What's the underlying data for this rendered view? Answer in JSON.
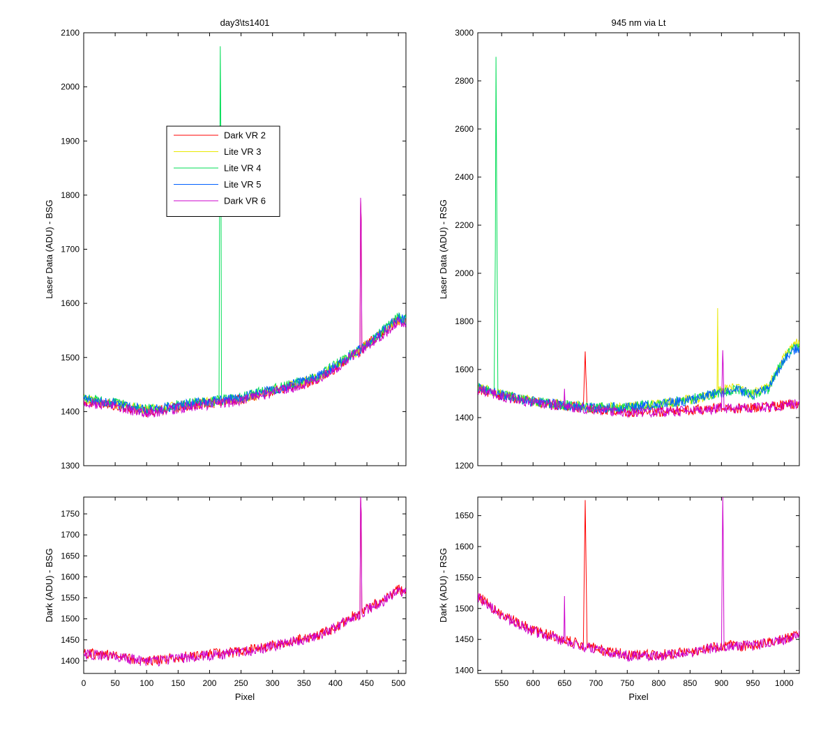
{
  "chart_data": [
    {
      "id": "top-left",
      "type": "line",
      "title": "day3\\ts1401",
      "xlabel": "",
      "ylabel": "Laser Data (ADU) - BSG",
      "xlim": [
        0,
        512
      ],
      "ylim": [
        1300,
        2100
      ],
      "xticks": [
        0,
        50,
        100,
        150,
        200,
        250,
        300,
        350,
        400,
        450,
        500
      ],
      "yticks": [
        1300,
        1400,
        1500,
        1600,
        1700,
        1800,
        1900,
        2000,
        2100
      ],
      "show_x_tick_labels": false,
      "legend": {
        "placement": "upper-left",
        "entries": [
          "Dark VR 2",
          "Lite VR 3",
          "Lite VR 4",
          "Lite VR 5",
          "Dark VR 6"
        ]
      },
      "series": [
        {
          "name": "Dark VR 2",
          "color": "#ff0000",
          "x": [
            0,
            25,
            50,
            75,
            100,
            125,
            150,
            175,
            200,
            225,
            250,
            275,
            300,
            325,
            350,
            375,
            400,
            425,
            439,
            440,
            441,
            442,
            450,
            475,
            500,
            512
          ],
          "y": [
            1420,
            1415,
            1412,
            1405,
            1400,
            1402,
            1408,
            1412,
            1415,
            1418,
            1422,
            1430,
            1437,
            1445,
            1452,
            1462,
            1480,
            1505,
            1510,
            1790,
            1750,
            1515,
            1525,
            1545,
            1570,
            1565
          ]
        },
        {
          "name": "Lite VR 3",
          "color": "#e8e800",
          "x": [
            0,
            25,
            50,
            75,
            100,
            125,
            150,
            175,
            200,
            225,
            250,
            275,
            300,
            325,
            350,
            375,
            400,
            425,
            450,
            475,
            500,
            512
          ],
          "y": [
            1422,
            1418,
            1414,
            1407,
            1403,
            1405,
            1410,
            1414,
            1417,
            1420,
            1424,
            1432,
            1439,
            1447,
            1454,
            1465,
            1483,
            1503,
            1523,
            1547,
            1572,
            1567
          ]
        },
        {
          "name": "Lite VR 4",
          "color": "#00dd55",
          "x": [
            0,
            25,
            50,
            75,
            100,
            125,
            150,
            175,
            200,
            215,
            216,
            217,
            218,
            219,
            225,
            250,
            275,
            300,
            325,
            350,
            375,
            400,
            425,
            450,
            475,
            500,
            512
          ],
          "y": [
            1425,
            1420,
            1416,
            1410,
            1405,
            1407,
            1412,
            1416,
            1419,
            1420,
            1800,
            2075,
            1900,
            1420,
            1422,
            1426,
            1434,
            1441,
            1449,
            1457,
            1468,
            1486,
            1506,
            1526,
            1550,
            1575,
            1570
          ]
        },
        {
          "name": "Lite VR 5",
          "color": "#0060ff",
          "x": [
            0,
            25,
            50,
            75,
            100,
            125,
            150,
            175,
            200,
            225,
            250,
            275,
            300,
            325,
            350,
            375,
            400,
            425,
            450,
            475,
            500,
            512
          ],
          "y": [
            1423,
            1419,
            1415,
            1408,
            1404,
            1406,
            1411,
            1415,
            1418,
            1421,
            1425,
            1433,
            1440,
            1448,
            1455,
            1466,
            1484,
            1504,
            1524,
            1548,
            1573,
            1568
          ]
        },
        {
          "name": "Dark VR 6",
          "color": "#cc00cc",
          "x": [
            0,
            25,
            50,
            75,
            100,
            125,
            150,
            175,
            200,
            225,
            250,
            275,
            300,
            325,
            350,
            375,
            400,
            425,
            439,
            440,
            441,
            442,
            450,
            475,
            500,
            512
          ],
          "y": [
            1418,
            1413,
            1410,
            1403,
            1398,
            1400,
            1406,
            1410,
            1413,
            1416,
            1420,
            1428,
            1435,
            1443,
            1450,
            1460,
            1478,
            1503,
            1508,
            1795,
            1745,
            1512,
            1522,
            1542,
            1567,
            1562
          ]
        }
      ]
    },
    {
      "id": "top-right",
      "type": "line",
      "title": "945 nm via Lt",
      "xlabel": "",
      "ylabel": "Laser Data (ADU) - RSG",
      "xlim": [
        512,
        1024
      ],
      "ylim": [
        1200,
        3000
      ],
      "xticks": [
        550,
        600,
        650,
        700,
        750,
        800,
        850,
        900,
        950,
        1000
      ],
      "yticks": [
        1200,
        1400,
        1600,
        1800,
        2000,
        2200,
        2400,
        2600,
        2800,
        3000
      ],
      "show_x_tick_labels": false,
      "series": [
        {
          "name": "Dark VR 2",
          "color": "#ff0000",
          "x": [
            512,
            525,
            550,
            575,
            600,
            650,
            680,
            683,
            684,
            686,
            700,
            750,
            800,
            850,
            900,
            950,
            1000,
            1024
          ],
          "y": [
            1520,
            1510,
            1490,
            1478,
            1465,
            1450,
            1440,
            1675,
            1600,
            1440,
            1435,
            1425,
            1425,
            1430,
            1440,
            1440,
            1450,
            1460
          ]
        },
        {
          "name": "Lite VR 3",
          "color": "#e8e800",
          "x": [
            512,
            525,
            550,
            575,
            600,
            650,
            700,
            750,
            800,
            850,
            880,
            893,
            894,
            895,
            900,
            925,
            950,
            975,
            1000,
            1020,
            1024
          ],
          "y": [
            1525,
            1515,
            1495,
            1482,
            1468,
            1453,
            1440,
            1445,
            1455,
            1475,
            1490,
            1500,
            1855,
            1510,
            1515,
            1525,
            1500,
            1530,
            1650,
            1720,
            1700
          ]
        },
        {
          "name": "Lite VR 4",
          "color": "#00dd55",
          "x": [
            512,
            525,
            538,
            540,
            541,
            542,
            544,
            550,
            575,
            600,
            650,
            700,
            750,
            800,
            850,
            900,
            925,
            950,
            975,
            1000,
            1020,
            1024
          ],
          "y": [
            1525,
            1515,
            1505,
            2100,
            2900,
            2400,
            1505,
            1495,
            1482,
            1468,
            1453,
            1440,
            1445,
            1455,
            1475,
            1505,
            1520,
            1495,
            1520,
            1650,
            1700,
            1690
          ]
        },
        {
          "name": "Lite VR 5",
          "color": "#0060ff",
          "x": [
            512,
            525,
            550,
            575,
            600,
            650,
            700,
            750,
            800,
            850,
            900,
            925,
            950,
            975,
            1000,
            1020,
            1024
          ],
          "y": [
            1522,
            1512,
            1493,
            1480,
            1466,
            1451,
            1438,
            1443,
            1453,
            1473,
            1503,
            1518,
            1493,
            1518,
            1645,
            1690,
            1685
          ]
        },
        {
          "name": "Dark VR 6",
          "color": "#cc00cc",
          "x": [
            512,
            525,
            550,
            575,
            600,
            649,
            650,
            651,
            700,
            750,
            800,
            850,
            900,
            902,
            903,
            904,
            950,
            1000,
            1024
          ],
          "y": [
            1518,
            1508,
            1488,
            1476,
            1463,
            1448,
            1520,
            1448,
            1433,
            1423,
            1423,
            1428,
            1438,
            1680,
            1600,
            1438,
            1440,
            1450,
            1458
          ]
        }
      ]
    },
    {
      "id": "bottom-left",
      "type": "line",
      "title": "",
      "xlabel": "Pixel",
      "ylabel": "Dark (ADU) - BSG",
      "xlim": [
        0,
        512
      ],
      "ylim": [
        1370,
        1790
      ],
      "xticks": [
        0,
        50,
        100,
        150,
        200,
        250,
        300,
        350,
        400,
        450,
        500
      ],
      "yticks": [
        1400,
        1450,
        1500,
        1550,
        1600,
        1650,
        1700,
        1750
      ],
      "show_x_tick_labels": true,
      "series": [
        {
          "name": "Dark VR 2",
          "color": "#ff0000",
          "x": [
            0,
            25,
            50,
            75,
            100,
            125,
            150,
            175,
            200,
            225,
            250,
            275,
            300,
            325,
            350,
            375,
            400,
            425,
            439,
            440,
            441,
            442,
            450,
            475,
            500,
            512
          ],
          "y": [
            1420,
            1415,
            1412,
            1405,
            1400,
            1402,
            1408,
            1412,
            1415,
            1418,
            1422,
            1430,
            1437,
            1445,
            1452,
            1462,
            1480,
            1505,
            1510,
            1790,
            1750,
            1515,
            1525,
            1545,
            1570,
            1565
          ]
        },
        {
          "name": "Dark VR 6",
          "color": "#cc00cc",
          "x": [
            0,
            25,
            50,
            75,
            100,
            125,
            150,
            175,
            200,
            225,
            250,
            275,
            300,
            325,
            350,
            375,
            400,
            425,
            439,
            440,
            441,
            442,
            450,
            475,
            500,
            512
          ],
          "y": [
            1418,
            1413,
            1410,
            1403,
            1398,
            1400,
            1406,
            1410,
            1413,
            1416,
            1420,
            1428,
            1435,
            1443,
            1450,
            1460,
            1478,
            1503,
            1508,
            1795,
            1745,
            1512,
            1522,
            1542,
            1567,
            1562
          ]
        }
      ]
    },
    {
      "id": "bottom-right",
      "type": "line",
      "title": "",
      "xlabel": "Pixel",
      "ylabel": "Dark (ADU) - RSG",
      "xlim": [
        512,
        1024
      ],
      "ylim": [
        1395,
        1680
      ],
      "xticks": [
        550,
        600,
        650,
        700,
        750,
        800,
        850,
        900,
        950,
        1000
      ],
      "yticks": [
        1400,
        1450,
        1500,
        1550,
        1600,
        1650
      ],
      "show_x_tick_labels": true,
      "series": [
        {
          "name": "Dark VR 2",
          "color": "#ff0000",
          "x": [
            512,
            525,
            550,
            575,
            600,
            650,
            680,
            683,
            684,
            686,
            700,
            750,
            800,
            850,
            900,
            950,
            1000,
            1024
          ],
          "y": [
            1520,
            1510,
            1490,
            1478,
            1465,
            1450,
            1440,
            1675,
            1600,
            1440,
            1435,
            1425,
            1425,
            1430,
            1440,
            1440,
            1450,
            1460
          ]
        },
        {
          "name": "Dark VR 6",
          "color": "#cc00cc",
          "x": [
            512,
            525,
            550,
            575,
            600,
            649,
            650,
            651,
            700,
            750,
            800,
            850,
            900,
            902,
            903,
            904,
            950,
            1000,
            1024
          ],
          "y": [
            1518,
            1508,
            1488,
            1476,
            1463,
            1448,
            1520,
            1448,
            1433,
            1423,
            1423,
            1428,
            1438,
            1680,
            1600,
            1438,
            1440,
            1450,
            1458
          ]
        }
      ]
    }
  ]
}
